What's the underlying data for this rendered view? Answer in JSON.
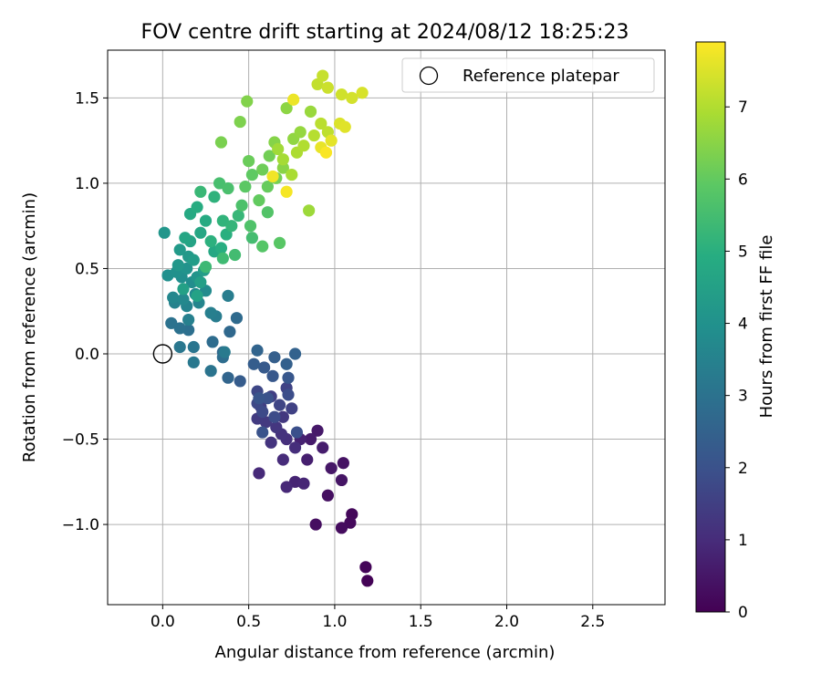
{
  "chart_data": {
    "type": "scatter",
    "title": "FOV centre drift starting at 2024/08/12 18:25:23",
    "xlabel": "Angular distance from reference (arcmin)",
    "ylabel": "Rotation from reference (arcmin)",
    "xlim": [
      -0.32,
      2.92
    ],
    "ylim": [
      -1.47,
      1.78
    ],
    "xticks": [
      0.0,
      0.5,
      1.0,
      1.5,
      2.0,
      2.5
    ],
    "xtick_labels": [
      "0.0",
      "0.5",
      "1.0",
      "1.5",
      "2.0",
      "2.5"
    ],
    "yticks": [
      -1.0,
      -0.5,
      0.0,
      0.5,
      1.0,
      1.5
    ],
    "ytick_labels": [
      "−1.0",
      "−0.5",
      "0.0",
      "0.5",
      "1.0",
      "1.5"
    ],
    "grid": true,
    "legend": {
      "placement": "top-right",
      "entries": [
        "Reference platepar"
      ]
    },
    "reference_point": {
      "label": "Reference platepar",
      "x": 0.0,
      "y": 0.0
    },
    "colorbar": {
      "label": "Hours from first FF file",
      "range": [
        0,
        7.9
      ],
      "ticks": [
        0,
        1,
        2,
        3,
        4,
        5,
        6,
        7
      ],
      "tick_labels": [
        "0",
        "1",
        "2",
        "3",
        "4",
        "5",
        "6",
        "7"
      ],
      "colormap": "viridis"
    },
    "series": [
      {
        "color_variable": "hours",
        "points": [
          {
            "x": 1.19,
            "y": -1.33,
            "c": 0.05
          },
          {
            "x": 1.18,
            "y": -1.25,
            "c": 0.1
          },
          {
            "x": 1.1,
            "y": -0.94,
            "c": 0.15
          },
          {
            "x": 1.09,
            "y": -0.99,
            "c": 0.2
          },
          {
            "x": 1.04,
            "y": -1.02,
            "c": 0.25
          },
          {
            "x": 0.89,
            "y": -1.0,
            "c": 0.3
          },
          {
            "x": 0.96,
            "y": -0.83,
            "c": 0.35
          },
          {
            "x": 1.05,
            "y": -0.64,
            "c": 0.4
          },
          {
            "x": 1.04,
            "y": -0.74,
            "c": 0.45
          },
          {
            "x": 0.98,
            "y": -0.67,
            "c": 0.5
          },
          {
            "x": 0.9,
            "y": -0.45,
            "c": 0.55
          },
          {
            "x": 0.86,
            "y": -0.5,
            "c": 0.6
          },
          {
            "x": 0.93,
            "y": -0.55,
            "c": 0.65
          },
          {
            "x": 0.84,
            "y": -0.62,
            "c": 0.7
          },
          {
            "x": 0.8,
            "y": -0.5,
            "c": 0.75
          },
          {
            "x": 0.77,
            "y": -0.75,
            "c": 0.8
          },
          {
            "x": 0.82,
            "y": -0.76,
            "c": 0.85
          },
          {
            "x": 0.72,
            "y": -0.78,
            "c": 0.9
          },
          {
            "x": 0.56,
            "y": -0.7,
            "c": 0.95
          },
          {
            "x": 0.7,
            "y": -0.62,
            "c": 1.0
          },
          {
            "x": 0.77,
            "y": -0.55,
            "c": 1.05
          },
          {
            "x": 0.72,
            "y": -0.5,
            "c": 1.1
          },
          {
            "x": 0.69,
            "y": -0.47,
            "c": 1.15
          },
          {
            "x": 0.63,
            "y": -0.52,
            "c": 1.2
          },
          {
            "x": 0.66,
            "y": -0.43,
            "c": 1.25
          },
          {
            "x": 0.7,
            "y": -0.37,
            "c": 1.3
          },
          {
            "x": 0.6,
            "y": -0.4,
            "c": 1.35
          },
          {
            "x": 0.55,
            "y": -0.38,
            "c": 1.4
          },
          {
            "x": 0.57,
            "y": -0.31,
            "c": 1.45
          },
          {
            "x": 0.63,
            "y": -0.25,
            "c": 1.5
          },
          {
            "x": 0.75,
            "y": -0.32,
            "c": 1.55
          },
          {
            "x": 0.72,
            "y": -0.2,
            "c": 1.6
          },
          {
            "x": 0.68,
            "y": -0.3,
            "c": 1.65
          },
          {
            "x": 0.55,
            "y": -0.22,
            "c": 1.7
          },
          {
            "x": 0.55,
            "y": -0.29,
            "c": 1.75
          },
          {
            "x": 0.58,
            "y": -0.34,
            "c": 1.8
          },
          {
            "x": 0.65,
            "y": -0.37,
            "c": 1.85
          },
          {
            "x": 0.73,
            "y": -0.24,
            "c": 1.9
          },
          {
            "x": 0.78,
            "y": -0.46,
            "c": 1.95
          },
          {
            "x": 0.61,
            "y": -0.26,
            "c": 2.0
          },
          {
            "x": 0.58,
            "y": -0.46,
            "c": 2.05
          },
          {
            "x": 0.56,
            "y": -0.26,
            "c": 2.1
          },
          {
            "x": 0.73,
            "y": -0.14,
            "c": 2.15
          },
          {
            "x": 0.64,
            "y": -0.13,
            "c": 2.2
          },
          {
            "x": 0.59,
            "y": -0.08,
            "c": 2.25
          },
          {
            "x": 0.45,
            "y": -0.16,
            "c": 2.3
          },
          {
            "x": 0.53,
            "y": -0.06,
            "c": 2.35
          },
          {
            "x": 0.65,
            "y": -0.02,
            "c": 2.4
          },
          {
            "x": 0.72,
            "y": -0.06,
            "c": 2.45
          },
          {
            "x": 0.77,
            "y": 0.0,
            "c": 2.5
          },
          {
            "x": 0.55,
            "y": 0.02,
            "c": 2.55
          },
          {
            "x": 0.38,
            "y": -0.14,
            "c": 2.6
          },
          {
            "x": 0.35,
            "y": 0.01,
            "c": 2.65
          },
          {
            "x": 0.39,
            "y": 0.13,
            "c": 2.7
          },
          {
            "x": 0.43,
            "y": 0.21,
            "c": 2.75
          },
          {
            "x": 0.29,
            "y": 0.07,
            "c": 2.8
          },
          {
            "x": 0.35,
            "y": -0.02,
            "c": 2.85
          },
          {
            "x": 0.15,
            "y": 0.14,
            "c": 2.9
          },
          {
            "x": 0.1,
            "y": 0.15,
            "c": 2.95
          },
          {
            "x": 0.05,
            "y": 0.18,
            "c": 3.0
          },
          {
            "x": 0.28,
            "y": -0.1,
            "c": 3.05
          },
          {
            "x": 0.18,
            "y": 0.04,
            "c": 3.1
          },
          {
            "x": 0.1,
            "y": 0.04,
            "c": 3.15
          },
          {
            "x": 0.18,
            "y": -0.05,
            "c": 3.2
          },
          {
            "x": 0.36,
            "y": 0.01,
            "c": 3.25
          },
          {
            "x": 0.31,
            "y": 0.22,
            "c": 3.3
          },
          {
            "x": 0.38,
            "y": 0.34,
            "c": 3.35
          },
          {
            "x": 0.28,
            "y": 0.24,
            "c": 3.4
          },
          {
            "x": 0.15,
            "y": 0.2,
            "c": 3.45
          },
          {
            "x": 0.07,
            "y": 0.3,
            "c": 3.5
          },
          {
            "x": 0.14,
            "y": 0.28,
            "c": 3.55
          },
          {
            "x": 0.21,
            "y": 0.3,
            "c": 3.6
          },
          {
            "x": 0.06,
            "y": 0.33,
            "c": 3.65
          },
          {
            "x": 0.12,
            "y": 0.32,
            "c": 3.7
          },
          {
            "x": 0.19,
            "y": 0.35,
            "c": 3.75
          },
          {
            "x": 0.25,
            "y": 0.37,
            "c": 3.8
          },
          {
            "x": 0.17,
            "y": 0.42,
            "c": 3.85
          },
          {
            "x": 0.11,
            "y": 0.45,
            "c": 3.9
          },
          {
            "x": 0.03,
            "y": 0.46,
            "c": 3.95
          },
          {
            "x": 0.08,
            "y": 0.48,
            "c": 4.0
          },
          {
            "x": 0.14,
            "y": 0.5,
            "c": 4.05
          },
          {
            "x": 0.2,
            "y": 0.45,
            "c": 4.1
          },
          {
            "x": 0.01,
            "y": 0.71,
            "c": 4.15
          },
          {
            "x": 0.09,
            "y": 0.52,
            "c": 4.2
          },
          {
            "x": 0.15,
            "y": 0.57,
            "c": 4.25
          },
          {
            "x": 0.1,
            "y": 0.61,
            "c": 4.3
          },
          {
            "x": 0.18,
            "y": 0.55,
            "c": 4.35
          },
          {
            "x": 0.24,
            "y": 0.49,
            "c": 4.4
          },
          {
            "x": 0.22,
            "y": 0.42,
            "c": 4.45
          },
          {
            "x": 0.12,
            "y": 0.38,
            "c": 4.5
          },
          {
            "x": 0.2,
            "y": 0.34,
            "c": 4.55
          },
          {
            "x": 0.16,
            "y": 0.66,
            "c": 4.6
          },
          {
            "x": 0.13,
            "y": 0.68,
            "c": 4.65
          },
          {
            "x": 0.22,
            "y": 0.71,
            "c": 4.7
          },
          {
            "x": 0.3,
            "y": 0.6,
            "c": 4.75
          },
          {
            "x": 0.16,
            "y": 0.82,
            "c": 4.8
          },
          {
            "x": 0.25,
            "y": 0.78,
            "c": 4.85
          },
          {
            "x": 0.2,
            "y": 0.86,
            "c": 4.9
          },
          {
            "x": 0.34,
            "y": 0.62,
            "c": 4.95
          },
          {
            "x": 0.37,
            "y": 0.7,
            "c": 5.0
          },
          {
            "x": 0.28,
            "y": 0.66,
            "c": 5.05
          },
          {
            "x": 0.3,
            "y": 0.92,
            "c": 5.1
          },
          {
            "x": 0.35,
            "y": 0.78,
            "c": 5.15
          },
          {
            "x": 0.4,
            "y": 0.75,
            "c": 5.2
          },
          {
            "x": 0.44,
            "y": 0.81,
            "c": 5.25
          },
          {
            "x": 0.22,
            "y": 0.95,
            "c": 5.3
          },
          {
            "x": 0.25,
            "y": 0.51,
            "c": 5.35
          },
          {
            "x": 0.35,
            "y": 0.56,
            "c": 5.4
          },
          {
            "x": 0.42,
            "y": 0.58,
            "c": 5.45
          },
          {
            "x": 0.52,
            "y": 0.68,
            "c": 5.5
          },
          {
            "x": 0.33,
            "y": 1.0,
            "c": 5.55
          },
          {
            "x": 0.38,
            "y": 0.97,
            "c": 5.6
          },
          {
            "x": 0.46,
            "y": 0.87,
            "c": 5.65
          },
          {
            "x": 0.51,
            "y": 0.75,
            "c": 5.7
          },
          {
            "x": 0.61,
            "y": 0.83,
            "c": 5.75
          },
          {
            "x": 0.58,
            "y": 0.63,
            "c": 5.8
          },
          {
            "x": 0.68,
            "y": 0.65,
            "c": 5.85
          },
          {
            "x": 0.48,
            "y": 0.98,
            "c": 5.9
          },
          {
            "x": 0.52,
            "y": 1.05,
            "c": 5.95
          },
          {
            "x": 0.56,
            "y": 0.9,
            "c": 6.0
          },
          {
            "x": 0.61,
            "y": 0.98,
            "c": 6.05
          },
          {
            "x": 0.5,
            "y": 1.13,
            "c": 6.1
          },
          {
            "x": 0.58,
            "y": 1.08,
            "c": 6.15
          },
          {
            "x": 0.62,
            "y": 1.16,
            "c": 6.2
          },
          {
            "x": 0.66,
            "y": 1.03,
            "c": 6.25
          },
          {
            "x": 0.34,
            "y": 1.24,
            "c": 6.3
          },
          {
            "x": 0.45,
            "y": 1.36,
            "c": 6.35
          },
          {
            "x": 0.49,
            "y": 1.48,
            "c": 6.4
          },
          {
            "x": 0.65,
            "y": 1.24,
            "c": 6.45
          },
          {
            "x": 0.7,
            "y": 1.09,
            "c": 6.5
          },
          {
            "x": 0.72,
            "y": 1.44,
            "c": 6.55
          },
          {
            "x": 0.76,
            "y": 1.26,
            "c": 6.6
          },
          {
            "x": 0.8,
            "y": 1.3,
            "c": 6.65
          },
          {
            "x": 0.86,
            "y": 1.42,
            "c": 6.7
          },
          {
            "x": 0.85,
            "y": 0.84,
            "c": 6.75
          },
          {
            "x": 0.67,
            "y": 1.2,
            "c": 6.8
          },
          {
            "x": 0.7,
            "y": 1.14,
            "c": 6.85
          },
          {
            "x": 0.75,
            "y": 1.05,
            "c": 6.9
          },
          {
            "x": 0.78,
            "y": 1.18,
            "c": 6.95
          },
          {
            "x": 0.82,
            "y": 1.22,
            "c": 7.0
          },
          {
            "x": 0.88,
            "y": 1.28,
            "c": 7.05
          },
          {
            "x": 0.92,
            "y": 1.35,
            "c": 7.1
          },
          {
            "x": 0.96,
            "y": 1.3,
            "c": 7.15
          },
          {
            "x": 0.9,
            "y": 1.58,
            "c": 7.2
          },
          {
            "x": 0.93,
            "y": 1.63,
            "c": 7.25
          },
          {
            "x": 0.96,
            "y": 1.56,
            "c": 7.3
          },
          {
            "x": 1.04,
            "y": 1.52,
            "c": 7.35
          },
          {
            "x": 1.1,
            "y": 1.5,
            "c": 7.4
          },
          {
            "x": 1.16,
            "y": 1.53,
            "c": 7.45
          },
          {
            "x": 1.03,
            "y": 1.35,
            "c": 7.5
          },
          {
            "x": 1.06,
            "y": 1.33,
            "c": 7.55
          },
          {
            "x": 0.98,
            "y": 1.25,
            "c": 7.6
          },
          {
            "x": 0.92,
            "y": 1.21,
            "c": 7.65
          },
          {
            "x": 0.76,
            "y": 1.49,
            "c": 7.7
          },
          {
            "x": 0.64,
            "y": 1.04,
            "c": 7.75
          },
          {
            "x": 0.72,
            "y": 0.95,
            "c": 7.8
          },
          {
            "x": 0.95,
            "y": 1.18,
            "c": 7.85
          }
        ]
      }
    ]
  }
}
